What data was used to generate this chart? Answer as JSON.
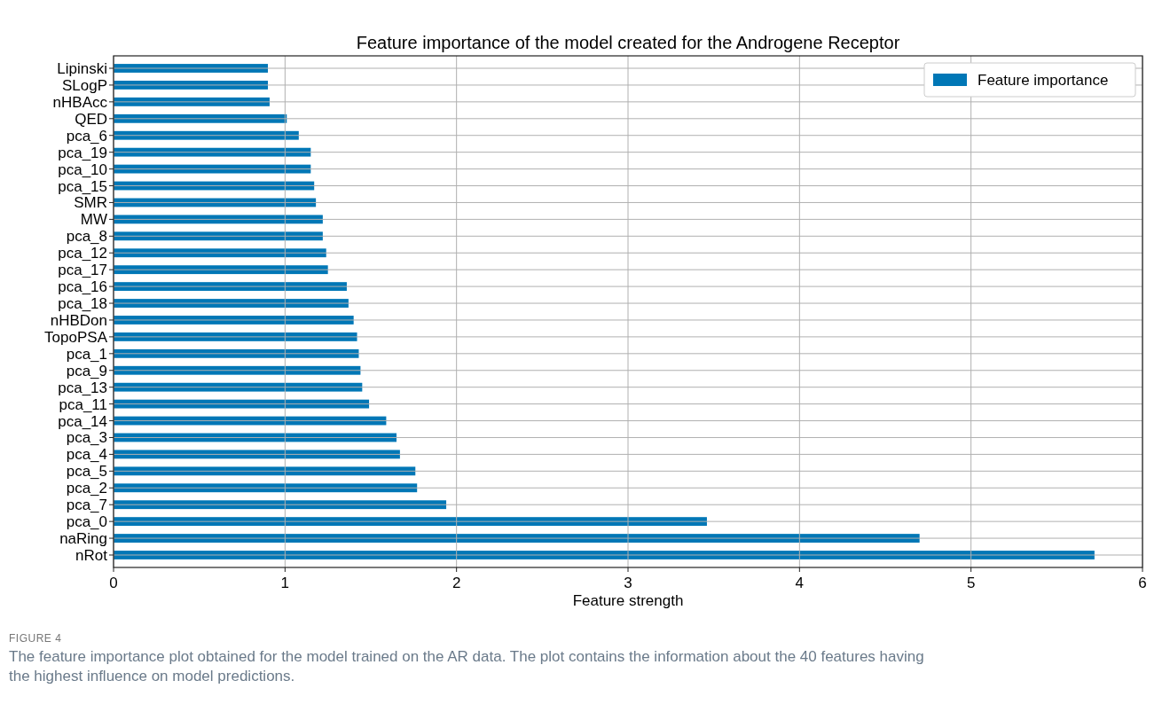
{
  "chart_data": {
    "type": "bar",
    "orientation": "horizontal",
    "title": "Feature importance of the model created for the Androgene Receptor",
    "xlabel": "Feature strength",
    "categories": [
      "Lipinski",
      "SLogP",
      "nHBAcc",
      "QED",
      "pca_6",
      "pca_19",
      "pca_10",
      "pca_15",
      "SMR",
      "MW",
      "pca_8",
      "pca_12",
      "pca_17",
      "pca_16",
      "pca_18",
      "nHBDon",
      "TopoPSA",
      "pca_1",
      "pca_9",
      "pca_13",
      "pca_11",
      "pca_14",
      "pca_3",
      "pca_4",
      "pca_5",
      "pca_2",
      "pca_7",
      "pca_0",
      "naRing",
      "nRot"
    ],
    "series": [
      {
        "name": "Feature importance",
        "color": "#0077b6",
        "values": [
          0.9,
          0.9,
          0.91,
          1.01,
          1.08,
          1.15,
          1.15,
          1.17,
          1.18,
          1.22,
          1.22,
          1.24,
          1.25,
          1.36,
          1.37,
          1.4,
          1.42,
          1.43,
          1.44,
          1.45,
          1.49,
          1.59,
          1.65,
          1.67,
          1.76,
          1.77,
          1.94,
          3.46,
          4.7,
          5.72
        ]
      }
    ],
    "xlim": [
      0,
      6
    ],
    "xticks": [
      0,
      1,
      2,
      3,
      4,
      5,
      6
    ],
    "grid": true,
    "legend": "top right",
    "annotations": [
      "FIGURE 4",
      "The feature importance plot obtained for the model trained on the AR data. The plot contains the information about the 40 features having",
      "the highest influence on model predictions."
    ]
  }
}
